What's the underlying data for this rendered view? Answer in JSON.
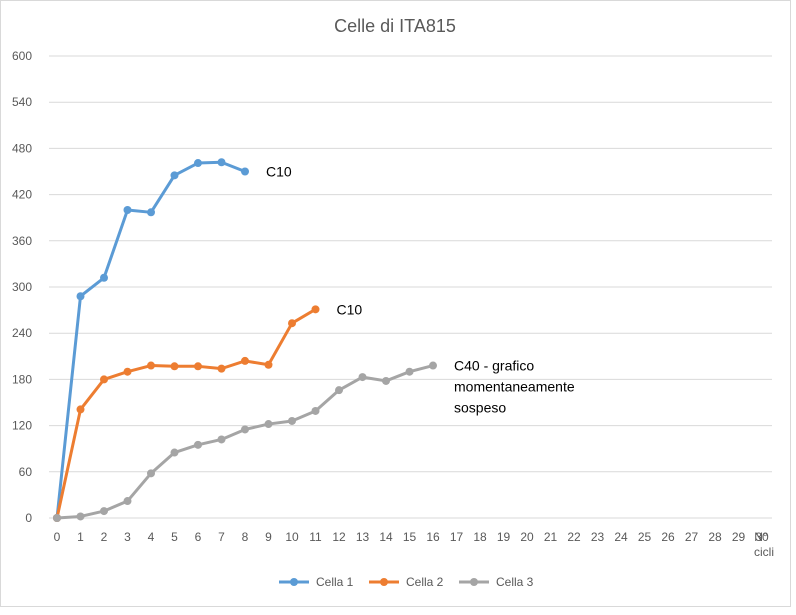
{
  "chart_data": {
    "type": "line",
    "title": "Celle di ITA815",
    "xlabel": "N° cicli",
    "xlabel_lines": [
      "N°",
      "cicli"
    ],
    "ylabel": "",
    "ylim": [
      0,
      600
    ],
    "yticks": [
      0,
      60,
      120,
      180,
      240,
      300,
      360,
      420,
      480,
      540,
      600
    ],
    "categories": [
      "0",
      "1",
      "2",
      "3",
      "4",
      "5",
      "6",
      "7",
      "8",
      "9",
      "10",
      "11",
      "12",
      "13",
      "14",
      "15",
      "16",
      "17",
      "18",
      "19",
      "20",
      "21",
      "22",
      "23",
      "24",
      "25",
      "26",
      "27",
      "28",
      "29",
      "30"
    ],
    "grid": true,
    "legend_position": "bottom",
    "series": [
      {
        "name": "Cella 1",
        "color": "#5b9bd5",
        "x": [
          0,
          1,
          2,
          3,
          4,
          5,
          6,
          7,
          8
        ],
        "values": [
          0,
          288,
          312,
          400,
          397,
          445,
          461,
          462,
          450
        ]
      },
      {
        "name": "Cella 2",
        "color": "#ed7d31",
        "x": [
          0,
          1,
          2,
          3,
          4,
          5,
          6,
          7,
          8,
          9,
          10,
          11
        ],
        "values": [
          0,
          141,
          180,
          190,
          198,
          197,
          197,
          194,
          204,
          199,
          253,
          271
        ]
      },
      {
        "name": "Cella 3",
        "color": "#a5a5a5",
        "x": [
          0,
          1,
          2,
          3,
          4,
          5,
          6,
          7,
          8,
          9,
          10,
          11,
          12,
          13,
          14,
          15,
          16
        ],
        "values": [
          0,
          2,
          9,
          22,
          58,
          85,
          95,
          102,
          115,
          122,
          126,
          139,
          166,
          183,
          178,
          190,
          198
        ]
      }
    ],
    "annotations": [
      {
        "lines": [
          "C10"
        ],
        "series": "Cella 1"
      },
      {
        "lines": [
          "C10"
        ],
        "series": "Cella 2"
      },
      {
        "lines": [
          "C40 - grafico",
          "momentaneamente",
          "sospeso"
        ],
        "series": "Cella 3"
      }
    ]
  }
}
